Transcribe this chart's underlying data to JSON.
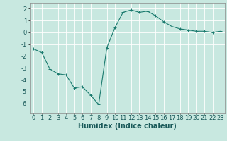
{
  "x": [
    0,
    1,
    2,
    3,
    4,
    5,
    6,
    7,
    8,
    9,
    10,
    11,
    12,
    13,
    14,
    15,
    16,
    17,
    18,
    19,
    20,
    21,
    22,
    23
  ],
  "y": [
    -1.4,
    -1.7,
    -3.1,
    -3.5,
    -3.6,
    -4.7,
    -4.6,
    -5.3,
    -6.1,
    -1.3,
    0.4,
    1.7,
    1.9,
    1.7,
    1.8,
    1.4,
    0.9,
    0.5,
    0.3,
    0.2,
    0.1,
    0.1,
    0.0,
    0.1
  ],
  "line_color": "#1a7a6e",
  "marker": "+",
  "markersize": 3,
  "linewidth": 0.8,
  "background_color": "#c8e8e0",
  "grid_color": "#ffffff",
  "xlabel": "Humidex (Indice chaleur)",
  "xlabel_fontsize": 7,
  "tick_fontsize": 6,
  "ylim": [
    -6.8,
    2.5
  ],
  "xlim": [
    -0.5,
    23.5
  ],
  "yticks": [
    -6,
    -5,
    -4,
    -3,
    -2,
    -1,
    0,
    1,
    2
  ],
  "xticks": [
    0,
    1,
    2,
    3,
    4,
    5,
    6,
    7,
    8,
    9,
    10,
    11,
    12,
    13,
    14,
    15,
    16,
    17,
    18,
    19,
    20,
    21,
    22,
    23
  ],
  "spine_color": "#888888"
}
